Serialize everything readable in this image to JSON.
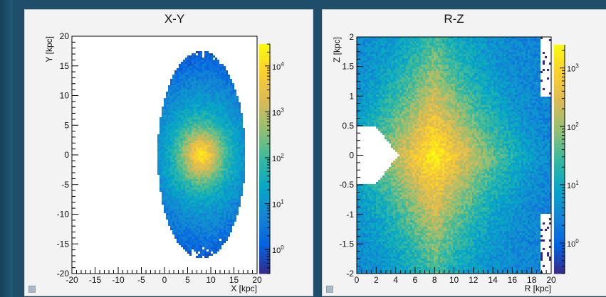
{
  "colors": {
    "background": "#1f4e6b",
    "panel": "#f3f3f3",
    "plot_bg": "#ffffff",
    "palette": [
      "#352a87",
      "#0363e1",
      "#1485d4",
      "#06a7c6",
      "#38b99e",
      "#92bf73",
      "#d9ba56",
      "#fcce2e",
      "#f9fb0e"
    ]
  },
  "chart_data": [
    {
      "type": "heatmap",
      "title": "X-Y",
      "xlabel": "X [kpc]",
      "ylabel": "Y [kpc]",
      "xlim": [
        -20,
        20
      ],
      "ylim": [
        -20,
        20
      ],
      "x_ticks": [
        -20,
        -15,
        -10,
        -5,
        0,
        5,
        10,
        15,
        20
      ],
      "y_ticks": [
        -20,
        -15,
        -10,
        -5,
        0,
        5,
        10,
        15,
        20
      ],
      "x_tick_labels": [
        "-20",
        "-15",
        "-10",
        "-5",
        "0",
        "5",
        "10",
        "15",
        "20"
      ],
      "y_tick_labels": [
        "-20",
        "-15",
        "-10",
        "-5",
        "0",
        "5",
        "10",
        "15",
        "20"
      ],
      "z_scale": "log",
      "zlim": [
        0.3,
        30000
      ],
      "z_ticks": [
        1,
        10,
        100,
        1000,
        10000
      ],
      "z_tick_labels": [
        {
          "base": "10",
          "exp": "0"
        },
        {
          "base": "10",
          "exp": "1"
        },
        {
          "base": "10",
          "exp": "2"
        },
        {
          "base": "10",
          "exp": "3"
        },
        {
          "base": "10",
          "exp": "4"
        }
      ],
      "distribution": {
        "shape": "ellipse",
        "center": [
          8,
          0
        ],
        "extent_x": [
          -3,
          16
        ],
        "extent_y": [
          -17,
          18
        ],
        "peak": 25000
      }
    },
    {
      "type": "heatmap",
      "title": "R-Z",
      "xlabel": "R [kpc]",
      "ylabel": "Z [kpc]",
      "xlim": [
        0,
        20
      ],
      "ylim": [
        -2,
        2
      ],
      "x_ticks": [
        0,
        2,
        4,
        6,
        8,
        10,
        12,
        14,
        16,
        18,
        20
      ],
      "y_ticks": [
        -2,
        -1.5,
        -1,
        -0.5,
        0,
        0.5,
        1,
        1.5,
        2
      ],
      "x_tick_labels": [
        "0",
        "2",
        "4",
        "6",
        "8",
        "10",
        "12",
        "14",
        "16",
        "18",
        "20"
      ],
      "y_tick_labels": [
        "-2",
        "-1.5",
        "-1",
        "-0.5",
        "0",
        "0.5",
        "1",
        "1.5",
        "2"
      ],
      "z_scale": "log",
      "zlim": [
        0.3,
        2500
      ],
      "z_ticks": [
        1,
        10,
        100,
        1000
      ],
      "z_tick_labels": [
        {
          "base": "10",
          "exp": "0"
        },
        {
          "base": "10",
          "exp": "1"
        },
        {
          "base": "10",
          "exp": "2"
        },
        {
          "base": "10",
          "exp": "3"
        }
      ],
      "distribution": {
        "shape": "disk",
        "center": [
          8,
          0
        ],
        "extent_x": [
          0,
          20
        ],
        "extent_y": [
          -2,
          2
        ],
        "inner_gap_r": 4.3,
        "peak": 2000
      }
    }
  ]
}
